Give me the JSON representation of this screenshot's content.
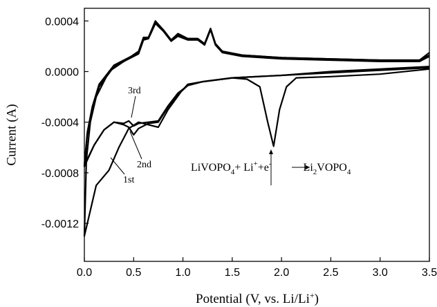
{
  "chart_data": {
    "type": "line",
    "x_label": [
      "Potential (V, vs. Li/Li",
      "+",
      ")"
    ],
    "y_label": "Current (A)",
    "xlim": [
      0,
      3.5
    ],
    "ylim": [
      -0.0015,
      0.0005
    ],
    "xticks": [
      {
        "value": 0,
        "label": "0.0"
      },
      0.5,
      {
        "value": 1,
        "label": "1.0"
      },
      1.5,
      {
        "value": 2,
        "label": "2.0"
      },
      2.5,
      {
        "value": 3,
        "label": "3.0"
      },
      3.5
    ],
    "yticks": [
      0.0004,
      {
        "value": 0,
        "label": "0.0000"
      },
      -0.0004,
      -0.0008,
      -0.0012
    ],
    "series": [
      {
        "color": "#000000",
        "x": [
          3.5,
          3.0,
          2.5,
          2.15,
          2.05,
          1.98,
          1.92,
          1.86,
          1.78,
          1.65,
          1.5,
          1.2,
          1.05,
          0.98,
          0.85,
          0.75,
          0.65,
          0.55,
          0.45,
          0.35,
          0.25,
          0.12,
          0.03,
          0.0,
          0.02,
          0.06,
          0.12,
          0.25,
          0.4,
          0.55,
          0.6,
          0.65,
          0.72,
          0.8,
          0.88,
          0.95,
          1.05,
          1.15,
          1.22,
          1.28,
          1.33,
          1.4,
          1.6,
          2.0,
          2.5,
          3.0,
          3.4,
          3.5
        ],
        "values": [
          2e-05,
          -2e-05,
          -4e-05,
          -5e-05,
          -0.00012,
          -0.0003,
          -0.00059,
          -0.0004,
          -0.00012,
          -6e-05,
          -5e-05,
          -8e-05,
          -0.0001,
          -0.00016,
          -0.0003,
          -0.00044,
          -0.00042,
          -0.0004,
          -0.00045,
          -0.0006,
          -0.00078,
          -0.0009,
          -0.0012,
          -0.0013,
          -0.0007,
          -0.0004,
          -0.0002,
          0.0,
          8e-05,
          0.00016,
          0.00027,
          0.00027,
          0.0004,
          0.00033,
          0.00025,
          0.0003,
          0.00026,
          0.00026,
          0.00022,
          0.00034,
          0.00022,
          0.00016,
          0.00013,
          0.00011,
          0.0001,
          9e-05,
          9e-05,
          0.00015
        ]
      },
      {
        "color": "#000000",
        "x": [
          3.5,
          3.0,
          2.5,
          2.0,
          1.5,
          1.2,
          1.05,
          0.95,
          0.85,
          0.75,
          0.65,
          0.55,
          0.5,
          0.45,
          0.4,
          0.3,
          0.2,
          0.1,
          0.0,
          0.03,
          0.08,
          0.15,
          0.3,
          0.45,
          0.55,
          0.6,
          0.65,
          0.72,
          0.8,
          0.88,
          0.95,
          1.05,
          1.15,
          1.22,
          1.28,
          1.33,
          1.4,
          1.6,
          2.0,
          2.5,
          3.0,
          3.4,
          3.5
        ],
        "values": [
          4e-05,
          2e-05,
          0.0,
          -3e-05,
          -5e-05,
          -8e-05,
          -0.00011,
          -0.00018,
          -0.00028,
          -0.0004,
          -0.00041,
          -0.00045,
          -0.0005,
          -0.00044,
          -0.00042,
          -0.0004,
          -0.00046,
          -0.00058,
          -0.00075,
          -0.0005,
          -0.0003,
          -0.00012,
          4e-05,
          0.0001,
          0.00014,
          0.00025,
          0.00026,
          0.00038,
          0.00032,
          0.00024,
          0.00028,
          0.00025,
          0.00025,
          0.00021,
          0.00033,
          0.00021,
          0.00015,
          0.00012,
          0.0001,
          9e-05,
          8e-05,
          8e-05,
          0.00012
        ]
      },
      {
        "color": "#000000",
        "x": [
          3.5,
          3.0,
          2.5,
          2.0,
          1.5,
          1.2,
          1.05,
          0.95,
          0.85,
          0.75,
          0.65,
          0.55,
          0.5,
          0.45,
          0.4,
          0.3,
          0.2,
          0.1,
          0.0,
          0.03,
          0.08,
          0.15,
          0.3,
          0.45,
          0.55,
          0.6,
          0.65,
          0.72,
          0.8,
          0.88,
          0.95,
          1.05,
          1.15,
          1.22,
          1.28,
          1.33,
          1.4,
          1.6,
          2.0,
          2.5,
          3.0,
          3.4,
          3.5
        ],
        "values": [
          3e-05,
          1e-05,
          -1e-05,
          -3e-05,
          -5e-05,
          -8e-05,
          -0.00011,
          -0.00017,
          -0.00027,
          -0.00039,
          -0.0004,
          -0.00041,
          -0.00043,
          -0.00039,
          -0.00041,
          -0.0004,
          -0.00046,
          -0.00058,
          -0.00074,
          -0.00048,
          -0.00028,
          -0.0001,
          5e-05,
          0.00011,
          0.00015,
          0.00026,
          0.00027,
          0.00039,
          0.00033,
          0.00025,
          0.00029,
          0.00026,
          0.00026,
          0.00022,
          0.00034,
          0.00022,
          0.00016,
          0.00013,
          0.00011,
          0.0001,
          9e-05,
          9e-05,
          0.00013
        ]
      }
    ],
    "annotations": [
      "3rd",
      "2nd",
      "1st"
    ],
    "reaction": [
      "LiVOPO",
      "4",
      "+ Li",
      "+",
      "+e",
      "-",
      "Li",
      "2",
      "VOPO",
      "4"
    ]
  }
}
